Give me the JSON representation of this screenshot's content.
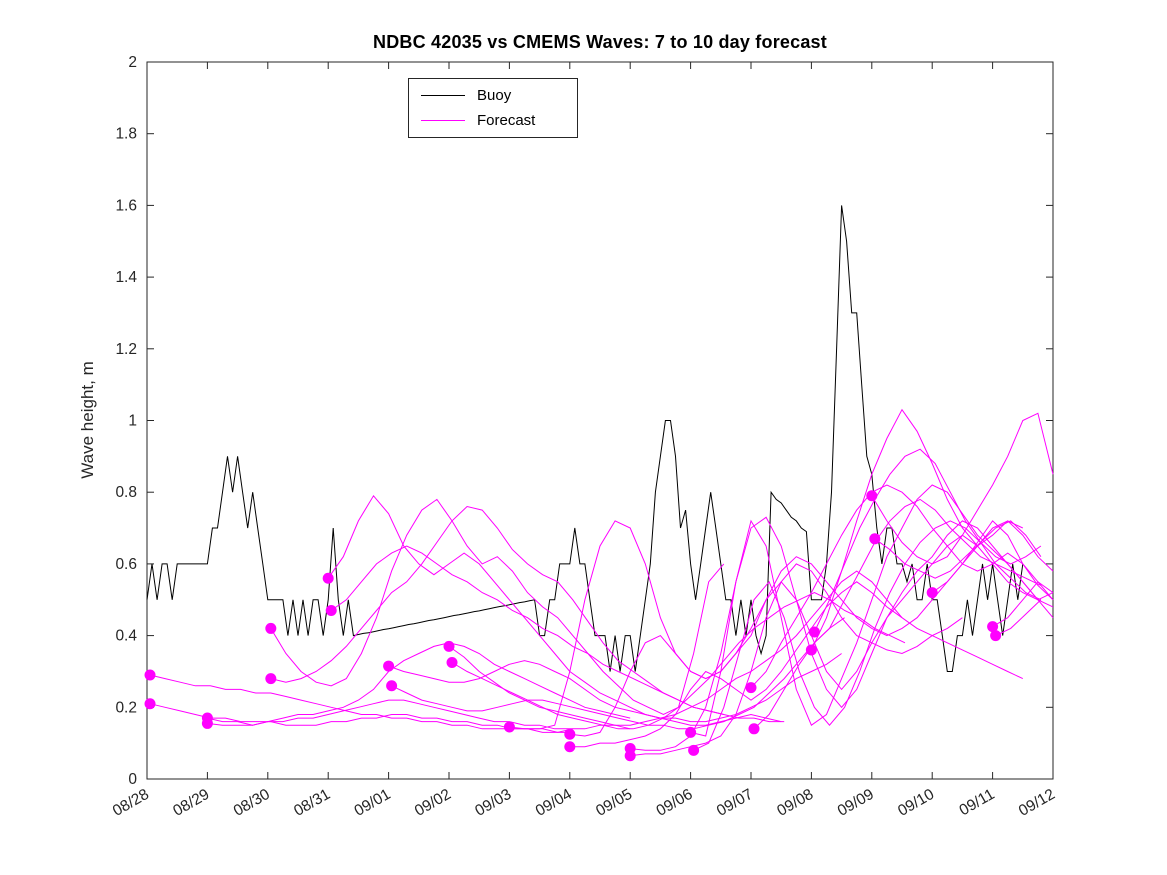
{
  "chart_data": {
    "type": "line",
    "title": "NDBC 42035 vs CMEMS Waves: 7 to 10 day forecast",
    "xlabel": "",
    "ylabel": "Wave height, m",
    "xlim": [
      0,
      15
    ],
    "ylim": [
      0,
      2
    ],
    "grid": false,
    "axis_color": "#262626",
    "x_units": "days since 08/28",
    "x_tick_labels": [
      "08/28",
      "08/29",
      "08/30",
      "08/31",
      "09/01",
      "09/02",
      "09/03",
      "09/04",
      "09/05",
      "09/06",
      "09/07",
      "09/08",
      "09/09",
      "09/10",
      "09/11",
      "09/12"
    ],
    "y_tick_values": [
      0,
      0.2,
      0.4,
      0.6,
      0.8,
      1,
      1.2,
      1.4,
      1.6,
      1.8,
      2
    ],
    "y_tick_labels": [
      "0",
      "0.2",
      "0.4",
      "0.6",
      "0.8",
      "1",
      "1.2",
      "1.4",
      "1.6",
      "1.8",
      "2"
    ],
    "colors": {
      "buoy": "#000000",
      "forecast": "#ff00ff",
      "background": "#ffffff"
    },
    "legend": {
      "position": "top-inside-left-of-center",
      "items": [
        {
          "label": "Buoy",
          "color": "#000000"
        },
        {
          "label": "Forecast",
          "color": "#ff00ff"
        }
      ]
    },
    "buoy": {
      "t0": 0,
      "dt": 0.0833333,
      "values": [
        0.5,
        0.6,
        0.5,
        0.6,
        0.6,
        0.5,
        0.6,
        0.6,
        0.6,
        0.6,
        0.6,
        0.6,
        0.6,
        0.7,
        0.7,
        0.8,
        0.9,
        0.8,
        0.9,
        0.8,
        0.7,
        0.8,
        0.7,
        0.6,
        0.5,
        0.5,
        0.5,
        0.5,
        0.4,
        0.5,
        0.4,
        0.5,
        0.4,
        0.5,
        0.5,
        0.4,
        0.5,
        0.7,
        0.5,
        0.4,
        0.5,
        0.4,
        0.403,
        0.406,
        0.408,
        0.411,
        0.414,
        0.417,
        0.419,
        0.422,
        0.425,
        0.428,
        0.431,
        0.433,
        0.436,
        0.439,
        0.442,
        0.444,
        0.447,
        0.45,
        0.453,
        0.456,
        0.458,
        0.461,
        0.464,
        0.467,
        0.469,
        0.472,
        0.475,
        0.478,
        0.481,
        0.483,
        0.486,
        0.489,
        0.492,
        0.494,
        0.497,
        0.5,
        0.4,
        0.4,
        0.5,
        0.5,
        0.6,
        0.6,
        0.6,
        0.7,
        0.6,
        0.6,
        0.5,
        0.4,
        0.4,
        0.4,
        0.3,
        0.4,
        0.3,
        0.4,
        0.4,
        0.3,
        0.4,
        0.5,
        0.6,
        0.8,
        0.9,
        1.0,
        1.0,
        0.9,
        0.7,
        0.75,
        0.6,
        0.5,
        0.6,
        0.7,
        0.8,
        0.7,
        0.6,
        0.5,
        0.5,
        0.4,
        0.5,
        0.4,
        0.5,
        0.4,
        0.35,
        0.4,
        0.8,
        0.78,
        0.77,
        0.75,
        0.73,
        0.72,
        0.7,
        0.69,
        0.5,
        0.5,
        0.5,
        0.6,
        0.8,
        1.2,
        1.6,
        1.5,
        1.3,
        1.3,
        1.1,
        0.9,
        0.85,
        0.7,
        0.6,
        0.7,
        0.7,
        0.6,
        0.6,
        0.55,
        0.6,
        0.5,
        0.5,
        0.6,
        0.5,
        0.5,
        0.4,
        0.3,
        0.3,
        0.4,
        0.4,
        0.5,
        0.4,
        0.5,
        0.6,
        0.5,
        0.6,
        0.5,
        0.4,
        0.5,
        0.6,
        0.5,
        0.6
      ]
    },
    "forecasts": [
      {
        "start": 0.05,
        "step": 0.25,
        "values": [
          0.29,
          0.28,
          0.27,
          0.26,
          0.26,
          0.25,
          0.25,
          0.24,
          0.24,
          0.23,
          0.22,
          0.21,
          0.2,
          0.19,
          0.18,
          0.18,
          0.17,
          0.17,
          0.16,
          0.16,
          0.15,
          0.15,
          0.14,
          0.14,
          0.14,
          0.14,
          0.13,
          0.13,
          0.13
        ]
      },
      {
        "start": 0.05,
        "step": 0.25,
        "values": [
          0.21,
          0.2,
          0.19,
          0.18,
          0.17,
          0.17,
          0.16,
          0.16,
          0.16,
          0.15,
          0.15,
          0.15,
          0.16,
          0.16,
          0.17,
          0.17,
          0.18,
          0.18,
          0.17,
          0.17,
          0.16,
          0.16,
          0.15,
          0.15,
          0.14,
          0.14,
          0.14,
          0.13,
          0.14
        ]
      },
      {
        "start": 1.0,
        "step": 0.25,
        "values": [
          0.17,
          0.16,
          0.16,
          0.15,
          0.16,
          0.17,
          0.18,
          0.18,
          0.19,
          0.2,
          0.22,
          0.25,
          0.3,
          0.33,
          0.35,
          0.37,
          0.38,
          0.37,
          0.35,
          0.32,
          0.3,
          0.28,
          0.26,
          0.24,
          0.22,
          0.2,
          0.19,
          0.18,
          0.17
        ]
      },
      {
        "start": 1.0,
        "step": 0.25,
        "values": [
          0.155,
          0.15,
          0.15,
          0.15,
          0.16,
          0.16,
          0.17,
          0.17,
          0.18,
          0.19,
          0.2,
          0.21,
          0.22,
          0.22,
          0.21,
          0.2,
          0.19,
          0.18,
          0.17,
          0.16,
          0.16,
          0.15,
          0.15,
          0.14,
          0.14,
          0.14,
          0.15,
          0.15,
          0.14
        ]
      },
      {
        "start": 2.05,
        "step": 0.25,
        "values": [
          0.42,
          0.35,
          0.3,
          0.27,
          0.26,
          0.28,
          0.35,
          0.45,
          0.58,
          0.68,
          0.75,
          0.78,
          0.72,
          0.65,
          0.6,
          0.62,
          0.58,
          0.52,
          0.48,
          0.45,
          0.4,
          0.35,
          0.3,
          0.26,
          0.22,
          0.2,
          0.18,
          0.2,
          0.35,
          0.55,
          0.6
        ]
      },
      {
        "start": 2.05,
        "step": 0.25,
        "values": [
          0.28,
          0.27,
          0.28,
          0.3,
          0.33,
          0.37,
          0.42,
          0.47,
          0.52,
          0.55,
          0.6,
          0.66,
          0.72,
          0.76,
          0.75,
          0.7,
          0.64,
          0.6,
          0.57,
          0.55,
          0.5,
          0.44,
          0.38,
          0.33,
          0.3,
          0.27,
          0.24,
          0.22,
          0.2,
          0.19,
          0.18
        ]
      },
      {
        "start": 3.0,
        "step": 0.25,
        "values": [
          0.56,
          0.62,
          0.72,
          0.79,
          0.74,
          0.65,
          0.6,
          0.57,
          0.6,
          0.63,
          0.6,
          0.55,
          0.5,
          0.45,
          0.4,
          0.35,
          0.3,
          0.27,
          0.24,
          0.22,
          0.2,
          0.18,
          0.17,
          0.16,
          0.15,
          0.15,
          0.16,
          0.17,
          0.18,
          0.17,
          0.16
        ]
      },
      {
        "start": 3.05,
        "step": 0.25,
        "values": [
          0.47,
          0.5,
          0.55,
          0.6,
          0.63,
          0.65,
          0.63,
          0.6,
          0.57,
          0.55,
          0.52,
          0.5,
          0.47,
          0.45,
          0.42,
          0.4,
          0.37,
          0.35,
          0.32,
          0.3,
          0.28,
          0.26,
          0.24,
          0.22,
          0.2,
          0.19,
          0.18,
          0.17,
          0.17,
          0.16,
          0.16
        ]
      },
      {
        "start": 4.0,
        "step": 0.25,
        "values": [
          0.315,
          0.3,
          0.29,
          0.28,
          0.27,
          0.27,
          0.28,
          0.3,
          0.32,
          0.33,
          0.32,
          0.3,
          0.28,
          0.25,
          0.22,
          0.2,
          0.19,
          0.18,
          0.17,
          0.17,
          0.16,
          0.16,
          0.17,
          0.18,
          0.2,
          0.22,
          0.25,
          0.28,
          0.3,
          0.32,
          0.35
        ]
      },
      {
        "start": 4.05,
        "step": 0.25,
        "values": [
          0.26,
          0.24,
          0.22,
          0.21,
          0.2,
          0.19,
          0.19,
          0.2,
          0.21,
          0.22,
          0.22,
          0.21,
          0.2,
          0.19,
          0.18,
          0.17,
          0.16,
          0.15,
          0.15,
          0.14,
          0.14,
          0.15,
          0.16,
          0.18,
          0.2,
          0.24,
          0.28,
          0.33,
          0.38,
          0.42,
          0.45
        ]
      },
      {
        "start": 5.0,
        "step": 0.25,
        "values": [
          0.37,
          0.34,
          0.3,
          0.27,
          0.24,
          0.22,
          0.2,
          0.19,
          0.18,
          0.17,
          0.16,
          0.15,
          0.15,
          0.16,
          0.17,
          0.18,
          0.2,
          0.22,
          0.25,
          0.28,
          0.3,
          0.33,
          0.36,
          0.4,
          0.45,
          0.5,
          0.55,
          0.58,
          0.55,
          0.5,
          0.45
        ]
      },
      {
        "start": 5.05,
        "step": 0.25,
        "values": [
          0.325,
          0.3,
          0.28,
          0.26,
          0.24,
          0.22,
          0.2,
          0.18,
          0.17,
          0.16,
          0.15,
          0.14,
          0.14,
          0.15,
          0.17,
          0.2,
          0.24,
          0.28,
          0.33,
          0.38,
          0.42,
          0.45,
          0.48,
          0.5,
          0.52,
          0.5,
          0.47,
          0.45,
          0.42,
          0.4,
          0.38
        ]
      },
      {
        "start": 6.0,
        "step": 0.25,
        "values": [
          0.145,
          0.14,
          0.14,
          0.15,
          0.3,
          0.5,
          0.65,
          0.72,
          0.7,
          0.6,
          0.45,
          0.35,
          0.3,
          0.28,
          0.3,
          0.35,
          0.42,
          0.5,
          0.55,
          0.6,
          0.58,
          0.52,
          0.45,
          0.4,
          0.38,
          0.36,
          0.35,
          0.37,
          0.4,
          0.42,
          0.45
        ]
      },
      {
        "start": 7.0,
        "step": 0.25,
        "values": [
          0.125,
          0.12,
          0.13,
          0.2,
          0.3,
          0.38,
          0.4,
          0.35,
          0.3,
          0.28,
          0.3,
          0.35,
          0.4,
          0.5,
          0.58,
          0.62,
          0.6,
          0.55,
          0.5,
          0.45,
          0.42,
          0.4,
          0.42,
          0.45,
          0.5,
          0.55,
          0.6,
          0.65,
          0.7,
          0.72,
          0.7
        ]
      },
      {
        "start": 7.0,
        "step": 0.25,
        "values": [
          0.09,
          0.09,
          0.1,
          0.1,
          0.11,
          0.12,
          0.14,
          0.18,
          0.25,
          0.3,
          0.28,
          0.25,
          0.22,
          0.25,
          0.3,
          0.36,
          0.42,
          0.48,
          0.52,
          0.55,
          0.52,
          0.48,
          0.45,
          0.42,
          0.4,
          0.38,
          0.36,
          0.34,
          0.32,
          0.3,
          0.28
        ]
      },
      {
        "start": 8.0,
        "step": 0.25,
        "values": [
          0.085,
          0.08,
          0.08,
          0.09,
          0.12,
          0.2,
          0.35,
          0.55,
          0.7,
          0.73,
          0.65,
          0.5,
          0.35,
          0.25,
          0.2,
          0.25,
          0.35,
          0.45,
          0.52,
          0.58,
          0.62,
          0.68,
          0.72,
          0.7,
          0.65,
          0.6,
          0.55,
          0.5,
          0.48
        ]
      },
      {
        "start": 8.0,
        "step": 0.25,
        "values": [
          0.065,
          0.07,
          0.07,
          0.08,
          0.09,
          0.1,
          0.12,
          0.18,
          0.3,
          0.45,
          0.55,
          0.5,
          0.4,
          0.3,
          0.25,
          0.3,
          0.38,
          0.45,
          0.5,
          0.55,
          0.6,
          0.65,
          0.68,
          0.65,
          0.6,
          0.55,
          0.52,
          0.5,
          0.52
        ]
      },
      {
        "start": 9.0,
        "step": 0.25,
        "values": [
          0.13,
          0.12,
          0.3,
          0.55,
          0.72,
          0.65,
          0.45,
          0.25,
          0.15,
          0.18,
          0.28,
          0.38,
          0.5,
          0.62,
          0.7,
          0.78,
          0.82,
          0.8,
          0.74,
          0.68,
          0.64,
          0.6,
          0.55,
          0.5,
          0.45
        ]
      },
      {
        "start": 9.05,
        "step": 0.25,
        "values": [
          0.08,
          0.1,
          0.2,
          0.35,
          0.5,
          0.55,
          0.45,
          0.3,
          0.2,
          0.15,
          0.2,
          0.3,
          0.42,
          0.52,
          0.6,
          0.66,
          0.7,
          0.72,
          0.7,
          0.66,
          0.6,
          0.56,
          0.52,
          0.5
        ]
      },
      {
        "start": 10.0,
        "step": 0.25,
        "values": [
          0.255,
          0.3,
          0.38,
          0.45,
          0.52,
          0.6,
          0.68,
          0.75,
          0.8,
          0.82,
          0.8,
          0.76,
          0.7,
          0.65,
          0.6,
          0.58,
          0.6,
          0.63,
          0.6,
          0.55,
          0.5
        ]
      },
      {
        "start": 10.05,
        "step": 0.25,
        "values": [
          0.14,
          0.18,
          0.25,
          0.32,
          0.38,
          0.42,
          0.5,
          0.58,
          0.66,
          0.72,
          0.76,
          0.78,
          0.75,
          0.7,
          0.66,
          0.62,
          0.6,
          0.58,
          0.56,
          0.54
        ]
      },
      {
        "start": 11.0,
        "step": 0.25,
        "values": [
          0.36,
          0.45,
          0.58,
          0.72,
          0.85,
          0.95,
          1.03,
          0.97,
          0.88,
          0.78,
          0.7,
          0.65,
          0.68,
          0.72,
          0.68,
          0.62,
          0.58
        ]
      },
      {
        "start": 11.05,
        "step": 0.25,
        "values": [
          0.41,
          0.5,
          0.6,
          0.7,
          0.78,
          0.85,
          0.9,
          0.92,
          0.88,
          0.8,
          0.72,
          0.66,
          0.62,
          0.6,
          0.62,
          0.65
        ]
      },
      {
        "start": 12.0,
        "step": 0.25,
        "values": [
          0.79,
          0.72,
          0.66,
          0.62,
          0.6,
          0.62,
          0.68,
          0.75,
          0.82,
          0.9,
          1.0,
          1.02,
          0.85
        ]
      },
      {
        "start": 12.05,
        "step": 0.25,
        "values": [
          0.67,
          0.64,
          0.6,
          0.58,
          0.56,
          0.58,
          0.62,
          0.66,
          0.7,
          0.72,
          0.68,
          0.62
        ]
      },
      {
        "start": 13.0,
        "step": 0.25,
        "values": [
          0.52,
          0.55,
          0.6,
          0.66,
          0.72,
          0.68,
          0.6,
          0.54,
          0.5
        ]
      },
      {
        "start": 14.0,
        "step": 0.25,
        "values": [
          0.425,
          0.45,
          0.5,
          0.55,
          0.52
        ]
      },
      {
        "start": 14.05,
        "step": 0.25,
        "values": [
          0.4,
          0.42,
          0.46,
          0.5
        ]
      }
    ]
  }
}
